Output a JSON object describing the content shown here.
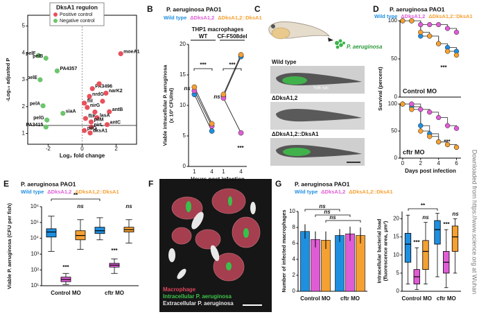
{
  "side_note": "Downloaded from https://www.science.org at Wuhan",
  "images": {
    "C": {
      "panel": "C",
      "pathogen": "P. aeruginosa",
      "rows": [
        "Wild type",
        "ΔDksA1,2",
        "ΔDksA1,2::DksA1"
      ],
      "yolk_sac": "Yolk sac"
    },
    "F": {
      "panel": "F",
      "legend": [
        "Macrophage",
        "Intracellular P. aeruginosa",
        "Extracellular P. aeruginosa"
      ]
    }
  },
  "chart_data": [
    {
      "type": "scatter",
      "panel": "A",
      "legend_title": "DksA1 regulon",
      "x_label": "Log₂ fold change",
      "y_label": "-Log₁₀ adjusted P",
      "xlim": [
        -3.2,
        3.2
      ],
      "xticks": [
        -2,
        0,
        2
      ],
      "ylim": [
        0.6,
        5.4
      ],
      "yticks": [
        1,
        2,
        3,
        4,
        5
      ],
      "threshold": 1.3,
      "series": [
        {
          "name": "Positive control",
          "color": "#e8515d",
          "x": [
            2.27,
            0.6,
            1.4,
            0.43,
            0.13,
            0.3,
            1.6,
            0.2,
            0.87,
            0.53,
            1.47,
            0.53,
            0.13,
            0.47,
            1.0,
            1.2,
            0.75
          ],
          "y": [
            3.97,
            2.67,
            2.5,
            2.38,
            2.13,
            1.97,
            1.81,
            1.56,
            1.59,
            1.43,
            1.33,
            1.24,
            1.11,
            1.02,
            2.85,
            2.2,
            1.8
          ],
          "labels": [
            "moeA1",
            "PA3496",
            "narK2",
            "nrdG",
            "fliI",
            "nirG",
            "antB",
            "fliK",
            "lasA",
            "pilM",
            "antC",
            "nirL",
            "pilQ",
            "dksA1",
            null,
            null,
            null
          ]
        },
        {
          "name": "Negative control",
          "color": "#6cc56c",
          "x": [
            -2.57,
            -2.13,
            -1.47,
            -2.47,
            -2.3,
            -1.13,
            -2.07,
            -2.13
          ],
          "y": [
            3.9,
            3.8,
            3.33,
            3.0,
            2.03,
            1.75,
            1.5,
            1.24
          ],
          "labels": [
            "pelF",
            "pelB",
            "PA4357",
            "pelE",
            "pelA",
            "siaA",
            "pelG",
            "PA3415"
          ]
        }
      ]
    },
    {
      "type": "dotline",
      "panel": "B",
      "title": "P. aeruginosa PAO1",
      "subtitle": "THP1 macrophages",
      "groups": [
        "WT",
        "CF-F508del"
      ],
      "categories": [
        "1",
        "4",
        "1",
        "4"
      ],
      "x_label": "Hours post infection",
      "y_label": [
        "Viable intracellular P. aeruginosa",
        "(x 10³ CFU/ml)"
      ],
      "ylim": [
        0,
        20
      ],
      "yticks": [
        0,
        5,
        10,
        15,
        20
      ],
      "series": [
        {
          "name": "Wild type",
          "color": "#1f8fe0",
          "values": [
            11.8,
            5.8,
            11.5,
            18.0
          ]
        },
        {
          "name": "ΔDksA1,2",
          "color": "#e05cd6",
          "values": [
            12.4,
            6.6,
            11.2,
            5.5
          ]
        },
        {
          "name": "ΔDksA1,2::DksA1",
          "color": "#f5a032",
          "values": [
            13.0,
            7.0,
            11.8,
            18.3
          ]
        }
      ],
      "annotations": [
        "ns",
        "***",
        "ns",
        "***",
        "***"
      ]
    },
    {
      "type": "survival",
      "panel": "D",
      "title": "P. aeruginosa PAO1",
      "label": "Control MO",
      "y_label": "Survival (percent)",
      "x": [
        0,
        1,
        2,
        3,
        4,
        5,
        6
      ],
      "xlim": [
        -0.3,
        6.5
      ],
      "ylim": [
        0,
        100
      ],
      "yticks": [
        0,
        50,
        100
      ],
      "series": [
        {
          "name": "Wild type",
          "color": "#1f8fe0",
          "values": [
            100,
            100,
            80,
            80,
            70,
            65,
            60
          ]
        },
        {
          "name": "ΔDksA1,2",
          "color": "#e05cd6",
          "values": [
            100,
            100,
            95,
            95,
            95,
            90,
            85
          ]
        },
        {
          "name": "ΔDksA1,2::DksA1",
          "color": "#f5a032",
          "values": [
            100,
            100,
            85,
            80,
            70,
            60,
            55
          ]
        }
      ],
      "annotations": [
        "***"
      ]
    },
    {
      "type": "survival",
      "label": "cftr MO",
      "x_label": "Days post infection",
      "x": [
        0,
        1,
        2,
        3,
        4,
        5,
        6
      ],
      "xlim": [
        -0.3,
        6.5
      ],
      "xticks": [
        0,
        2,
        4,
        6
      ],
      "ylim": [
        0,
        100
      ],
      "yticks": [
        0,
        50,
        100
      ],
      "series": [
        {
          "color": "#1f8fe0",
          "values": [
            100,
            95,
            60,
            45,
            30,
            25,
            20
          ]
        },
        {
          "color": "#e05cd6",
          "values": [
            100,
            100,
            90,
            85,
            75,
            60,
            55
          ]
        },
        {
          "color": "#f5a032",
          "values": [
            100,
            90,
            50,
            40,
            30,
            25,
            20
          ]
        }
      ],
      "annotations": [
        "***"
      ]
    },
    {
      "type": "box",
      "panel": "E",
      "title": "P. aeruginosa PAO1",
      "groups": [
        "Control MO",
        "cftr MO"
      ],
      "y_label": "Viable P. aeruginosa (CFU per fish)",
      "log_scale": true,
      "ylim": [
        10,
        1000000
      ],
      "yticks": [
        {
          "value": 10,
          "label": "10¹"
        },
        {
          "value": 100,
          "label": "10²"
        },
        {
          "value": 1000,
          "label": "10³"
        },
        {
          "value": 10000,
          "label": "10⁴"
        },
        {
          "value": 100000,
          "label": "10⁵"
        },
        {
          "value": 1000000,
          "label": "10⁶"
        }
      ],
      "series": [
        {
          "name": "Wild type",
          "color": "#1f8fe0",
          "boxes": [
            {
              "min": 1500,
              "q1": 12000,
              "median": 25000,
              "q3": 40000,
              "max": 250000
            },
            {
              "min": 8000,
              "q1": 20000,
              "median": 30000,
              "q3": 50000,
              "max": 200000
            }
          ]
        },
        {
          "name": "ΔDksA1,2",
          "color": "#e05cd6",
          "boxes": [
            {
              "min": 12,
              "q1": 18,
              "median": 25,
              "q3": 35,
              "max": 60
            },
            {
              "min": 60,
              "q1": 150,
              "median": 200,
              "q3": 260,
              "max": 500
            }
          ]
        },
        {
          "name": "ΔDksA1,2::DksA1",
          "color": "#f5a032",
          "boxes": [
            {
              "min": 2000,
              "q1": 8000,
              "median": 15000,
              "q3": 30000,
              "max": 150000
            },
            {
              "min": 5000,
              "q1": 25000,
              "median": 35000,
              "q3": 50000,
              "max": 150000
            }
          ]
        }
      ],
      "annotations": [
        "**",
        "***",
        "ns",
        "***",
        "ns"
      ]
    },
    {
      "type": "bar",
      "panel": "G",
      "title": "P. aeruginosa PAO1",
      "groups": [
        "Control MO",
        "cftr MO"
      ],
      "y_label": "Number of infected macrophages",
      "ylim": [
        0,
        10
      ],
      "yticks": [
        0,
        2,
        4,
        6,
        8,
        10
      ],
      "series": [
        {
          "name": "Wild type",
          "color": "#1f8fe0",
          "values": [
            7.5,
            7.0
          ],
          "errors": [
            0.9,
            0.8
          ]
        },
        {
          "name": "ΔDksA1,2",
          "color": "#e05cd6",
          "values": [
            6.5,
            7.2
          ],
          "errors": [
            1.0,
            0.9
          ]
        },
        {
          "name": "ΔDksA1,2::DksA1",
          "color": "#f5a032",
          "values": [
            6.4,
            7.0
          ],
          "errors": [
            1.1,
            1.0
          ]
        }
      ],
      "annotations": [
        "ns",
        "ns",
        "ns"
      ]
    },
    {
      "type": "box",
      "groups": [
        "Control MO",
        "cftr MO"
      ],
      "y_label": [
        "Intracellular bacterial load",
        "(fluorescence area, μm²)"
      ],
      "ylim": [
        0,
        22
      ],
      "yticks": [
        0,
        5,
        10,
        15,
        20
      ],
      "series": [
        {
          "color": "#1f8fe0",
          "boxes": [
            {
              "min": 2,
              "q1": 8,
              "median": 13,
              "q3": 16,
              "max": 21
            },
            {
              "min": 4,
              "q1": 13,
              "median": 17,
              "q3": 19.5,
              "max": 21.5
            }
          ]
        },
        {
          "color": "#e05cd6",
          "boxes": [
            {
              "min": 0.5,
              "q1": 2,
              "median": 4,
              "q3": 6,
              "max": 12
            },
            {
              "min": 1,
              "q1": 5,
              "median": 8,
              "q3": 11,
              "max": 17
            }
          ]
        },
        {
          "color": "#f5a032",
          "boxes": [
            {
              "min": 2,
              "q1": 6,
              "median": 11,
              "q3": 14,
              "max": 19
            },
            {
              "min": 5,
              "q1": 11,
              "median": 15,
              "q3": 18,
              "max": 20
            }
          ]
        }
      ],
      "annotations": [
        "**",
        "***",
        "ns",
        "***",
        "ns"
      ]
    }
  ]
}
